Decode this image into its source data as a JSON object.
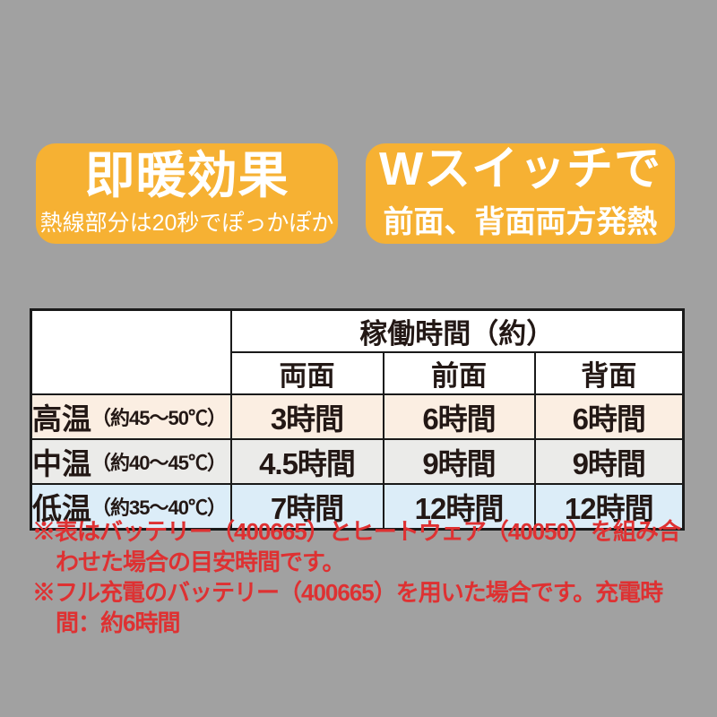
{
  "page": {
    "background_color": "#A1A1A1",
    "accent_color": "#F6B133",
    "footnote_color": "#DE3132",
    "table_border_color": "#1A1A1A"
  },
  "badges": [
    {
      "title": "即暖効果",
      "subtitle": "熱線部分は20秒でぽっかぽか",
      "color": "#F6B133"
    },
    {
      "title": "Wスイッチで",
      "subtitle": "前面、背面両方発熱",
      "color": "#F6B133"
    }
  ],
  "table": {
    "span_header": "稼働時間（約）",
    "column_headers": [
      "両面",
      "前面",
      "背面"
    ],
    "rows": [
      {
        "label": "高温",
        "label_note": "（約45～50℃）",
        "values": [
          "3時間",
          "6時間",
          "6時間"
        ],
        "bg": "#FBEEE2"
      },
      {
        "label": "中温",
        "label_note": "（約40～45℃）",
        "values": [
          "4.5時間",
          "9時間",
          "9時間"
        ],
        "bg": "#EBEBE9"
      },
      {
        "label": "低温",
        "label_note": "（約35～40℃）",
        "values": [
          "7時間",
          "12時間",
          "12時間"
        ],
        "bg": "#DCEDF8"
      }
    ]
  },
  "footnotes": [
    "※表はバッテリー（400665）とヒートウェア（40050）を組み合わせた場合の目安時間です。",
    "※フル充電のバッテリー（400665）を用いた場合です。充電時間：約6時間"
  ],
  "chart_data": {
    "type": "table",
    "title": "稼働時間（約）",
    "columns": [
      "",
      "両面",
      "前面",
      "背面"
    ],
    "rows": [
      [
        "高温（約45～50℃）",
        "3時間",
        "6時間",
        "6時間"
      ],
      [
        "中温（約40～45℃）",
        "4.5時間",
        "9時間",
        "9時間"
      ],
      [
        "低温（約35～40℃）",
        "7時間",
        "12時間",
        "12時間"
      ]
    ],
    "notes": [
      "表はバッテリー（400665）とヒートウェア（40050）を組み合わせた場合の目安時間です。",
      "フル充電のバッテリー（400665）を用いた場合です。充電時間：約6時間"
    ]
  }
}
